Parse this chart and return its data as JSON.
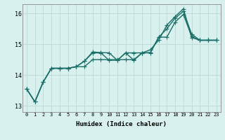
{
  "xlabel": "Humidex (Indice chaleur)",
  "bg_color": "#d8f0ee",
  "line_color": "#1a7068",
  "grid_color": "#c0dcd8",
  "xlim": [
    -0.5,
    23.5
  ],
  "ylim": [
    12.8,
    16.3
  ],
  "yticks": [
    13,
    14,
    15,
    16
  ],
  "xticks": [
    0,
    1,
    2,
    3,
    4,
    5,
    6,
    7,
    8,
    9,
    10,
    11,
    12,
    13,
    14,
    15,
    16,
    17,
    18,
    19,
    20,
    21,
    22,
    23
  ],
  "series": [
    [
      13.55,
      13.13,
      13.77,
      14.22,
      14.22,
      14.22,
      14.27,
      14.45,
      14.72,
      14.72,
      14.48,
      14.48,
      14.72,
      14.48,
      14.72,
      14.72,
      15.23,
      15.23,
      15.72,
      15.97,
      15.25,
      15.13,
      15.13,
      15.13
    ],
    [
      13.55,
      13.13,
      13.77,
      14.22,
      14.22,
      14.22,
      14.27,
      14.45,
      14.75,
      14.73,
      14.72,
      14.48,
      14.72,
      14.72,
      14.72,
      14.73,
      15.23,
      15.5,
      15.85,
      16.07,
      15.33,
      15.13,
      15.13,
      15.13
    ],
    [
      13.55,
      13.13,
      13.77,
      14.22,
      14.22,
      14.22,
      14.27,
      14.27,
      14.5,
      14.5,
      14.5,
      14.5,
      14.5,
      14.5,
      14.72,
      14.82,
      15.13,
      15.62,
      15.9,
      16.15,
      15.22,
      15.13,
      15.13,
      15.13
    ]
  ],
  "line_styles": [
    "-",
    "-",
    "-"
  ],
  "markers": [
    "+",
    "+",
    "+"
  ],
  "linewidths": [
    1.0,
    1.0,
    1.0
  ],
  "marker_sizes": [
    4,
    4,
    4
  ],
  "figsize": [
    3.2,
    2.0
  ],
  "dpi": 100
}
